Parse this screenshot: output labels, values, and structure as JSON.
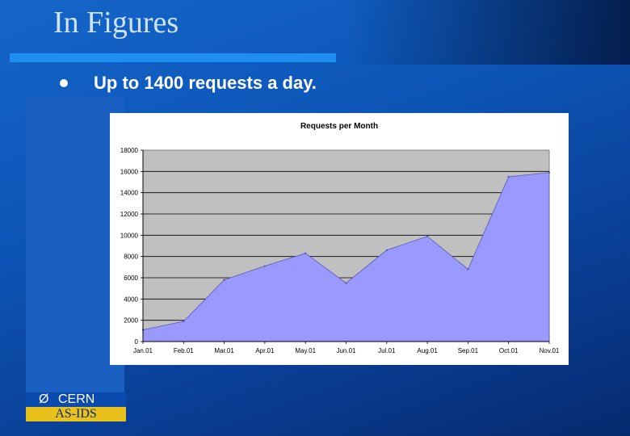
{
  "slide": {
    "title": "In Figures",
    "bullet_text": "Up to 1400 requests a day."
  },
  "logo": {
    "cern": "CERN",
    "group": "AS-IDS"
  },
  "colors": {
    "background": "#0d57b8",
    "title_rule": "#1e8ff0",
    "plot_area": "#c0c0c0",
    "area_fill": "#9999ff",
    "logo_band": "#e8c21a"
  },
  "chart_data": {
    "type": "area",
    "title": "Requests per Month",
    "categories": [
      "Jan.01",
      "Feb.01",
      "Mar.01",
      "Apr.01",
      "May.01",
      "Jun.01",
      "Jul.01",
      "Aug.01",
      "Sep.01",
      "Oct.01",
      "Nov.01"
    ],
    "values": [
      1100,
      1900,
      5800,
      7100,
      8300,
      5500,
      8600,
      9900,
      6800,
      15500,
      15900
    ],
    "ylim": [
      0,
      18000
    ],
    "yticks": [
      0,
      2000,
      4000,
      6000,
      8000,
      10000,
      12000,
      14000,
      16000,
      18000
    ],
    "grid": true,
    "legend": "none",
    "xlabel": "",
    "ylabel": ""
  }
}
